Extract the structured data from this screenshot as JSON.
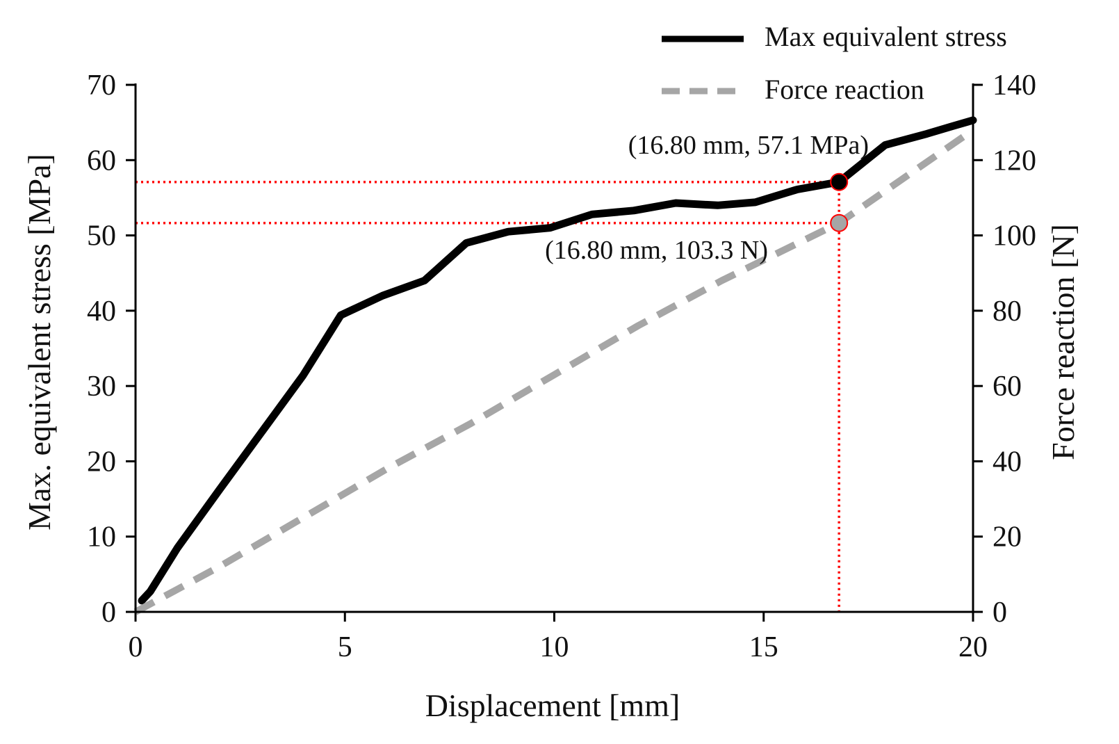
{
  "chart_data": {
    "type": "line",
    "xlabel": "Displacement [mm]",
    "ylabel": "Max. equivalent stress [MPa]",
    "y2label": "Force reaction [N]",
    "xlim": [
      0,
      20
    ],
    "ylim": [
      0,
      70
    ],
    "y2lim": [
      0,
      140
    ],
    "xticks": [
      0,
      5,
      10,
      15,
      20
    ],
    "yticks": [
      0,
      10,
      20,
      30,
      40,
      50,
      60,
      70
    ],
    "y2ticks": [
      0,
      20,
      40,
      60,
      80,
      100,
      120,
      140
    ],
    "grid": false,
    "legend_position": "top-right",
    "series": [
      {
        "name": "Max equivalent stress",
        "axis": "left",
        "color": "#000000",
        "style": "solid",
        "x": [
          0.15,
          0.35,
          1,
          2,
          3,
          4,
          4.9,
          5.9,
          6.9,
          7.9,
          8.9,
          9.9,
          10.9,
          11.9,
          12.9,
          13.9,
          14.8,
          15.8,
          16.8,
          17.9,
          18.9,
          19.5,
          20
        ],
        "y": [
          1.5,
          2.7,
          8.5,
          16.2,
          23.8,
          31.4,
          39.4,
          42.0,
          44.0,
          49.0,
          50.5,
          51.0,
          52.8,
          53.3,
          54.3,
          54.0,
          54.4,
          56.1,
          57.1,
          62.0,
          63.5,
          64.5,
          65.3
        ]
      },
      {
        "name": "Force reaction",
        "axis": "right",
        "color": "#a6a6a6",
        "style": "dashed",
        "x": [
          0,
          2,
          4,
          6,
          8,
          10,
          12,
          14,
          16.8,
          20
        ],
        "y": [
          0,
          12,
          25,
          38,
          50,
          63,
          76,
          88,
          103.3,
          128
        ]
      }
    ],
    "guide_color": "#ff0000",
    "annotations": [
      {
        "text": "(16.80 mm, 57.1 MPa)",
        "x": 16.8,
        "y": 57.1,
        "axis": "left",
        "marker_color": "#000000",
        "label_position": "above-left"
      },
      {
        "text": "(16.80 mm, 103.3 N)",
        "x": 16.8,
        "y": 103.3,
        "axis": "right",
        "marker_color": "#a6a6a6",
        "label_position": "below-left"
      }
    ]
  }
}
